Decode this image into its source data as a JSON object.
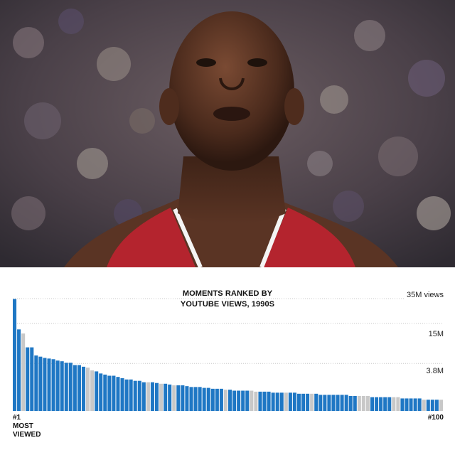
{
  "photo": {
    "subject": "basketball player in red jersey at free throw line, crowd in background"
  },
  "chart_data": {
    "type": "bar",
    "title": "MOMENTS RANKED BY YOUTUBE VIEWS, 1990S",
    "title_lines": [
      "MOMENTS RANKED BY",
      "YOUTUBE VIEWS, 1990S"
    ],
    "scale": "log",
    "y_ticks": [
      {
        "value": 35,
        "label": "35M views"
      },
      {
        "value": 15,
        "label": "15M"
      },
      {
        "value": 3.8,
        "label": "3.8M"
      }
    ],
    "ylim": [
      0.75,
      35
    ],
    "grid": true,
    "x_start_label_lines": [
      "#1",
      "MOST",
      "VIEWED"
    ],
    "x_end_label": "#100",
    "colors": {
      "blue": "#1f77c4",
      "gray": "#c8c8c8",
      "grid": "#c8c8c8"
    },
    "values": [
      34.5,
      12.2,
      10.6,
      6.6,
      6.6,
      5.0,
      4.8,
      4.6,
      4.5,
      4.4,
      4.2,
      4.1,
      3.9,
      3.9,
      3.6,
      3.6,
      3.4,
      3.3,
      3.0,
      2.9,
      2.7,
      2.6,
      2.5,
      2.5,
      2.4,
      2.3,
      2.2,
      2.2,
      2.1,
      2.1,
      2.0,
      2.0,
      2.0,
      1.95,
      1.9,
      1.9,
      1.85,
      1.8,
      1.8,
      1.8,
      1.75,
      1.7,
      1.7,
      1.7,
      1.65,
      1.65,
      1.6,
      1.6,
      1.6,
      1.55,
      1.55,
      1.5,
      1.5,
      1.5,
      1.5,
      1.5,
      1.45,
      1.45,
      1.45,
      1.45,
      1.4,
      1.4,
      1.4,
      1.4,
      1.4,
      1.4,
      1.35,
      1.35,
      1.35,
      1.35,
      1.35,
      1.3,
      1.3,
      1.3,
      1.3,
      1.3,
      1.3,
      1.3,
      1.25,
      1.25,
      1.25,
      1.25,
      1.25,
      1.2,
      1.2,
      1.2,
      1.2,
      1.2,
      1.2,
      1.2,
      1.15,
      1.15,
      1.15,
      1.15,
      1.15,
      1.1,
      1.1,
      1.1,
      1.1,
      1.1
    ],
    "highlighted": [
      1,
      1,
      0,
      1,
      1,
      1,
      1,
      1,
      1,
      1,
      1,
      1,
      1,
      1,
      1,
      1,
      1,
      0,
      0,
      1,
      1,
      1,
      1,
      1,
      1,
      1,
      1,
      1,
      1,
      1,
      1,
      0,
      1,
      1,
      0,
      1,
      1,
      0,
      1,
      1,
      1,
      1,
      1,
      1,
      1,
      1,
      1,
      1,
      1,
      0,
      1,
      1,
      1,
      1,
      1,
      0,
      0,
      1,
      1,
      1,
      1,
      1,
      1,
      0,
      1,
      1,
      1,
      1,
      1,
      0,
      1,
      1,
      1,
      1,
      1,
      1,
      1,
      1,
      1,
      1,
      0,
      0,
      0,
      1,
      1,
      1,
      1,
      1,
      0,
      0,
      1,
      1,
      1,
      1,
      1,
      0,
      1,
      1,
      1,
      0
    ]
  }
}
